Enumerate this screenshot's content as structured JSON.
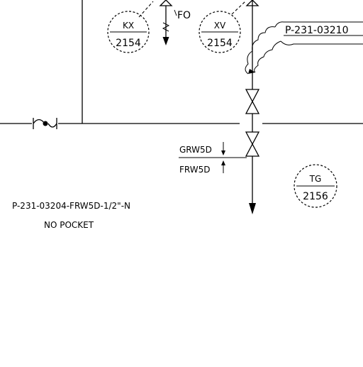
{
  "instruments": {
    "kx": {
      "tag": "KX",
      "number": "2154"
    },
    "xv": {
      "tag": "XV",
      "number": "2154"
    },
    "tg": {
      "tag": "TG",
      "number": "2156"
    }
  },
  "valve_note": "FO",
  "line_label": "P-231-03210",
  "drain_labels": {
    "top": "GRW5D",
    "bottom": "FRW5D"
  },
  "note": {
    "line1": "P-231-03204-FRW5D-1/2\"-N",
    "line2": "NO POCKET"
  }
}
